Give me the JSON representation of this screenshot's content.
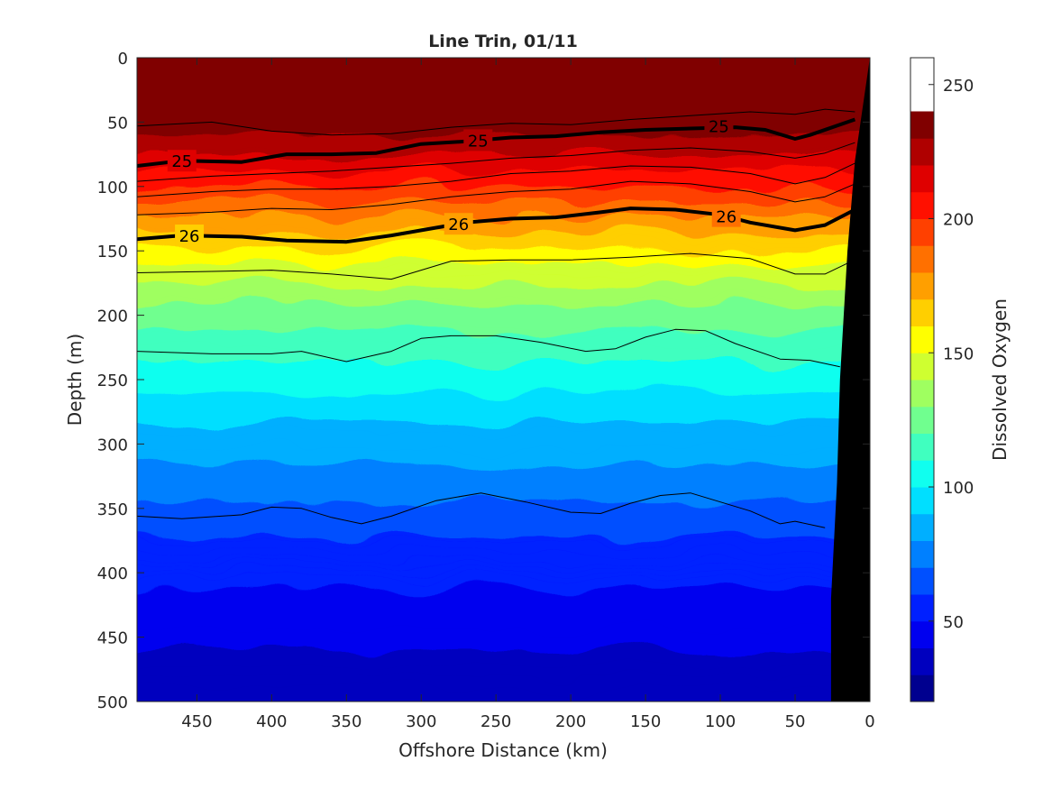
{
  "chart_data": {
    "type": "heatmap",
    "title": "Line Trin, 01/11",
    "xlabel": "Offshore Distance (km)",
    "ylabel": "Depth (m)",
    "colorbar_label": "Dissolved Oxygen",
    "xlim": [
      490,
      0
    ],
    "ylim": [
      0,
      500
    ],
    "x_reversed": true,
    "y_reversed": true,
    "x_ticks": [
      "450",
      "400",
      "350",
      "300",
      "250",
      "200",
      "150",
      "100",
      "50",
      "0"
    ],
    "x_tick_values": [
      450,
      400,
      350,
      300,
      250,
      200,
      150,
      100,
      50,
      0
    ],
    "y_ticks": [
      "0",
      "50",
      "100",
      "150",
      "200",
      "250",
      "300",
      "350",
      "400",
      "450",
      "500"
    ],
    "y_tick_values": [
      0,
      50,
      100,
      150,
      200,
      250,
      300,
      350,
      400,
      450,
      500
    ],
    "colorbar_range": [
      20,
      260
    ],
    "colorbar_ticks": [
      "50",
      "100",
      "150",
      "200",
      "250"
    ],
    "colorbar_tick_values": [
      50,
      100,
      150,
      200,
      250
    ],
    "colorbar_levels": [
      20,
      30,
      40,
      50,
      60,
      70,
      80,
      90,
      100,
      110,
      120,
      130,
      140,
      150,
      160,
      170,
      180,
      190,
      200,
      210,
      220,
      230,
      240,
      250,
      260
    ],
    "colormap": [
      "#00008f",
      "#0000bf",
      "#0000ef",
      "#0020ff",
      "#0050ff",
      "#0080ff",
      "#00afff",
      "#00dfff",
      "#10ffef",
      "#40ffbf",
      "#70ff8f",
      "#9fff60",
      "#cfff30",
      "#ffff00",
      "#ffcf00",
      "#ff9f00",
      "#ff7000",
      "#ff4000",
      "#ff1000",
      "#df0000",
      "#af0000",
      "#800000"
    ],
    "oxygen_profile": {
      "depth": [
        0,
        40,
        70,
        95,
        120,
        140,
        160,
        190,
        230,
        280,
        330,
        370,
        420,
        470,
        500
      ],
      "oxygen": [
        245,
        238,
        225,
        205,
        185,
        168,
        150,
        130,
        112,
        92,
        75,
        60,
        48,
        38,
        33
      ]
    },
    "density_contours": [
      {
        "label": "25",
        "bold": true,
        "label_positions": [
          [
            460,
            80
          ],
          [
            262,
            64
          ],
          [
            101,
            53
          ]
        ],
        "x": [
          490,
          460,
          420,
          390,
          360,
          330,
          300,
          270,
          240,
          210,
          180,
          150,
          120,
          90,
          70,
          50,
          40,
          10
        ],
        "depth": [
          84,
          80,
          81,
          75,
          75,
          74,
          67,
          65,
          62,
          61,
          58,
          56,
          55,
          54,
          56,
          63,
          60,
          48
        ]
      },
      {
        "label": "26",
        "bold": true,
        "label_positions": [
          [
            455,
            138
          ],
          [
            275,
            129
          ],
          [
            96,
            123
          ]
        ],
        "x": [
          490,
          460,
          420,
          390,
          350,
          320,
          300,
          270,
          240,
          210,
          180,
          160,
          130,
          100,
          80,
          50,
          30,
          10
        ],
        "depth": [
          141,
          138,
          139,
          142,
          143,
          138,
          134,
          128,
          125,
          124,
          120,
          117,
          118,
          122,
          128,
          134,
          130,
          118
        ]
      },
      {
        "x": [
          490,
          440,
          400,
          360,
          320,
          280,
          240,
          200,
          160,
          120,
          80,
          50,
          30,
          10
        ],
        "depth": [
          53,
          50,
          57,
          60,
          59,
          54,
          51,
          52,
          48,
          45,
          42,
          44,
          40,
          42
        ]
      },
      {
        "x": [
          490,
          440,
          400,
          360,
          320,
          280,
          240,
          200,
          160,
          120,
          80,
          50,
          30,
          10
        ],
        "depth": [
          96,
          92,
          90,
          88,
          85,
          82,
          78,
          76,
          72,
          70,
          73,
          78,
          74,
          66
        ]
      },
      {
        "x": [
          490,
          440,
          400,
          360,
          320,
          280,
          240,
          200,
          160,
          120,
          80,
          50,
          30,
          10
        ],
        "depth": [
          108,
          104,
          102,
          102,
          100,
          96,
          90,
          88,
          84,
          85,
          90,
          98,
          93,
          82
        ]
      },
      {
        "x": [
          490,
          440,
          400,
          360,
          320,
          280,
          240,
          200,
          160,
          120,
          80,
          50,
          30,
          10
        ],
        "depth": [
          122,
          120,
          117,
          118,
          114,
          108,
          104,
          102,
          96,
          98,
          104,
          112,
          108,
          98
        ]
      },
      {
        "x": [
          490,
          440,
          400,
          360,
          320,
          280,
          240,
          200,
          160,
          120,
          80,
          50,
          30,
          12
        ],
        "depth": [
          167,
          166,
          165,
          168,
          172,
          158,
          157,
          157,
          155,
          152,
          156,
          168,
          168,
          158
        ]
      },
      {
        "x": [
          490,
          440,
          400,
          380,
          350,
          320,
          300,
          280,
          250,
          220,
          190,
          170,
          150,
          130,
          110,
          90,
          60,
          40,
          20
        ],
        "depth": [
          228,
          230,
          230,
          228,
          236,
          228,
          218,
          216,
          216,
          221,
          228,
          226,
          217,
          211,
          212,
          222,
          234,
          235,
          240
        ]
      },
      {
        "x": [
          490,
          460,
          420,
          400,
          380,
          360,
          340,
          320,
          290,
          260,
          230,
          200,
          180,
          160,
          140,
          120,
          100,
          80,
          60,
          50,
          30
        ],
        "depth": [
          356,
          358,
          355,
          349,
          350,
          357,
          362,
          356,
          344,
          338,
          345,
          353,
          354,
          346,
          340,
          338,
          345,
          352,
          362,
          360,
          365
        ]
      }
    ],
    "bathymetry": {
      "x": [
        0,
        10,
        15,
        20,
        22,
        26,
        26,
        0
      ],
      "depth": [
        0,
        80,
        150,
        250,
        330,
        420,
        500,
        500
      ]
    }
  }
}
